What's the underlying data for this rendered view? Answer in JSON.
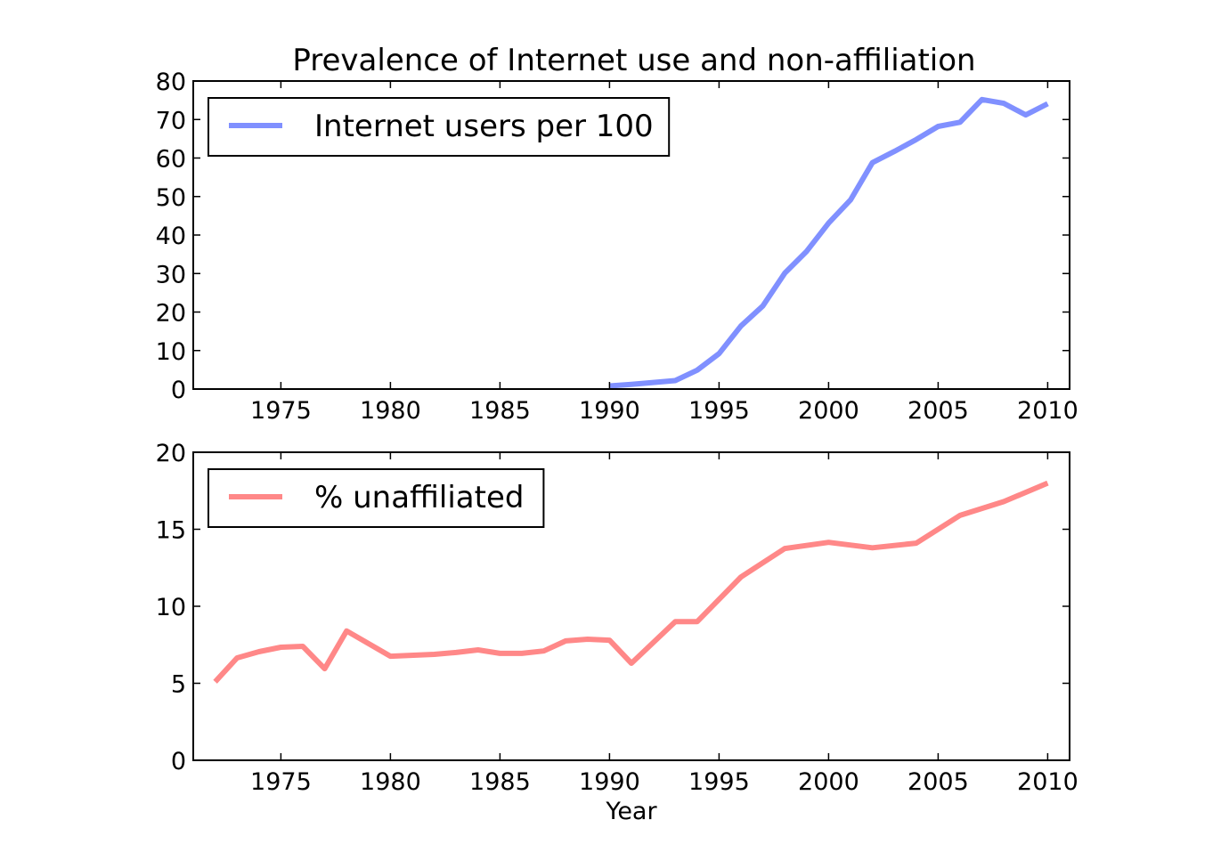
{
  "title": "Prevalence of Internet use and non-affiliation",
  "chart_data": [
    {
      "type": "line",
      "xlim": [
        1971,
        2011
      ],
      "ylim": [
        0,
        80
      ],
      "xticks": [
        1975,
        1980,
        1985,
        1990,
        1995,
        2000,
        2005,
        2010
      ],
      "yticks": [
        0,
        10,
        20,
        30,
        40,
        50,
        60,
        70,
        80
      ],
      "xlabel": "",
      "ylabel": "",
      "grid": false,
      "legend": "top-left",
      "series": [
        {
          "name": "Internet users per 100",
          "color": "#8090ff",
          "x": [
            1990,
            1991,
            1992,
            1993,
            1994,
            1995,
            1996,
            1997,
            1998,
            1999,
            2000,
            2001,
            2002,
            2003,
            2004,
            2005,
            2006,
            2007,
            2008,
            2009,
            2010
          ],
          "y": [
            0.8,
            1.2,
            1.7,
            2.2,
            4.9,
            9.2,
            16.4,
            21.6,
            30.1,
            35.8,
            43.1,
            49.1,
            58.8,
            61.7,
            64.8,
            68.2,
            69.3,
            75.2,
            74.2,
            71.2,
            74.1
          ]
        }
      ]
    },
    {
      "type": "line",
      "xlim": [
        1971,
        2011
      ],
      "ylim": [
        0,
        20
      ],
      "xticks": [
        1975,
        1980,
        1985,
        1990,
        1995,
        2000,
        2005,
        2010
      ],
      "yticks": [
        0,
        5,
        10,
        15,
        20
      ],
      "xlabel": "Year",
      "ylabel": "",
      "grid": false,
      "legend": "top-left",
      "series": [
        {
          "name": "% unaffiliated",
          "color": "#ff8888",
          "x": [
            1972,
            1973,
            1974,
            1975,
            1976,
            1977,
            1978,
            1980,
            1982,
            1983,
            1984,
            1985,
            1986,
            1987,
            1988,
            1989,
            1990,
            1991,
            1993,
            1994,
            1996,
            1998,
            2000,
            2002,
            2004,
            2006,
            2008,
            2010
          ],
          "y": [
            5.1,
            6.65,
            7.05,
            7.34,
            7.4,
            5.95,
            8.4,
            6.76,
            6.88,
            7.0,
            7.17,
            6.94,
            6.94,
            7.1,
            7.75,
            7.86,
            7.8,
            6.3,
            9.0,
            9.0,
            11.9,
            13.75,
            14.15,
            13.8,
            14.1,
            15.9,
            16.8,
            18.0
          ]
        }
      ]
    }
  ]
}
